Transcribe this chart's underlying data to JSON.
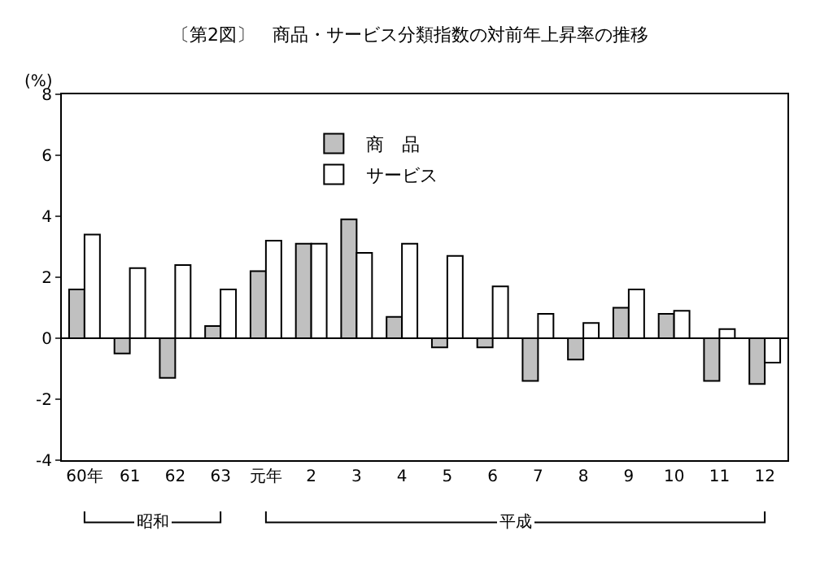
{
  "chart_data": {
    "type": "bar",
    "title": "〔第2図〕　商品・サービス分類指数の対前年上昇率の推移",
    "ylabel": "(%)",
    "categories": [
      "60年",
      "61",
      "62",
      "63",
      "元年",
      "2",
      "3",
      "4",
      "5",
      "6",
      "7",
      "8",
      "9",
      "10",
      "11",
      "12"
    ],
    "series": [
      {
        "name": "商　品",
        "color": "#c0c0c0",
        "values": [
          1.6,
          -0.5,
          -1.3,
          0.4,
          2.2,
          3.1,
          3.9,
          0.7,
          -0.3,
          -0.3,
          -1.4,
          -0.7,
          1.0,
          0.8,
          -1.4,
          -1.5
        ]
      },
      {
        "name": "サービス",
        "color": "#ffffff",
        "values": [
          3.4,
          2.3,
          2.4,
          1.6,
          3.2,
          3.1,
          2.8,
          3.1,
          2.7,
          1.7,
          0.8,
          0.5,
          1.6,
          0.9,
          0.3,
          -0.8
        ]
      }
    ],
    "ylim": [
      -4,
      8
    ],
    "yticks": [
      -4,
      -2,
      0,
      2,
      4,
      6,
      8
    ],
    "grid": false,
    "legend": "top",
    "ref_lines": [
      {
        "axis": "y",
        "value": 0,
        "color": "#000000"
      }
    ],
    "annotations": [
      "昭和",
      "平成"
    ]
  }
}
